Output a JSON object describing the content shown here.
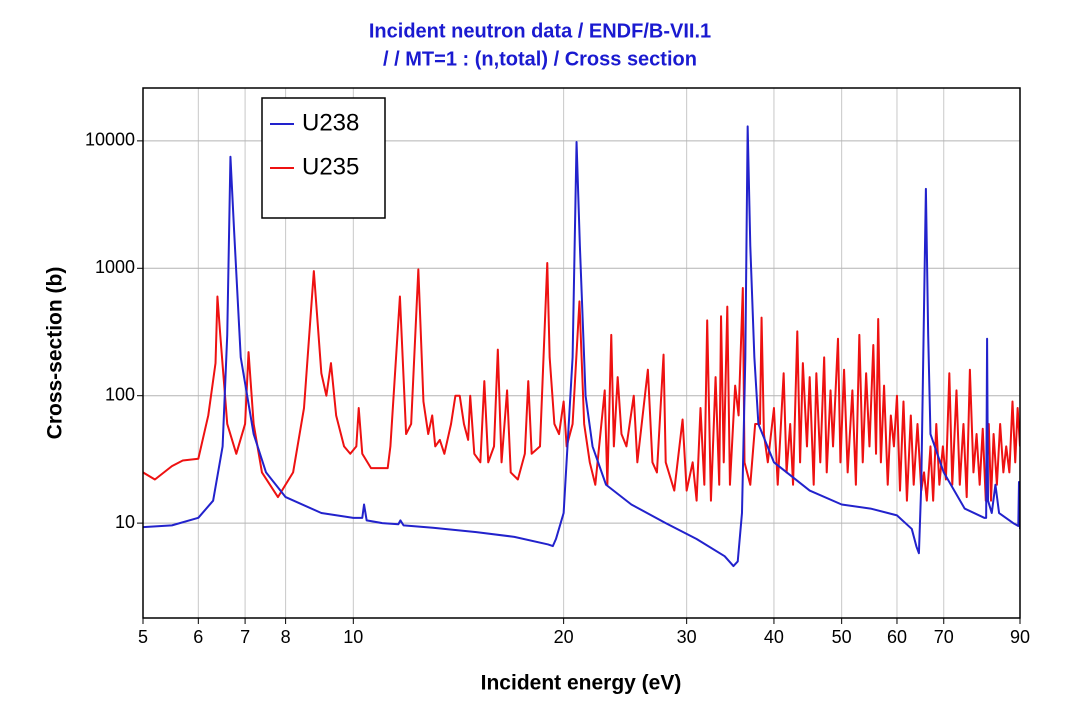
{
  "chart_data": {
    "type": "line",
    "title": "Incident neutron data / ENDF/B-VII.1",
    "subtitle": "/ / MT=1 : (n,total) / Cross section",
    "x_label": "Incident energy (eV)",
    "y_label": "Cross-section (b)",
    "xscale": "log",
    "yscale": "log",
    "grid": true,
    "legend": "upper left",
    "xlim": [
      5,
      90
    ],
    "ylim": [
      1.8,
      26000
    ],
    "xticks": [
      5,
      6,
      7,
      8,
      10,
      20,
      30,
      40,
      50,
      60,
      70,
      90
    ],
    "yticks": [
      10,
      100,
      1000,
      10000
    ],
    "series": [
      {
        "name": "U238",
        "color": "#2222cc",
        "x": [
          5,
          5.5,
          6,
          6.3,
          6.5,
          6.6,
          6.67,
          6.75,
          6.9,
          7.2,
          7.5,
          8,
          9,
          10,
          10.3,
          10.36,
          10.45,
          11,
          11.6,
          11.68,
          11.8,
          13,
          15,
          17,
          19,
          19.3,
          19.5,
          20,
          20.6,
          20.87,
          21.1,
          21.5,
          22,
          23,
          25,
          28,
          31,
          34,
          35,
          35.5,
          36,
          36.4,
          36.68,
          37,
          37.5,
          38,
          40,
          45,
          50,
          55,
          60,
          63,
          64,
          64.5,
          65,
          66,
          66.5,
          67,
          70,
          75,
          80,
          80.5,
          80.75,
          81,
          82,
          83,
          84,
          88,
          89.5,
          89.7,
          90
        ],
        "values": [
          9.3,
          9.6,
          11,
          15,
          40,
          300,
          7500,
          2000,
          200,
          50,
          25,
          16,
          12,
          11,
          11,
          14,
          10.5,
          10,
          9.8,
          10.5,
          9.6,
          9.2,
          8.5,
          7.8,
          6.8,
          6.6,
          7.5,
          12,
          200,
          9800,
          1500,
          100,
          40,
          20,
          14,
          10,
          7.5,
          5.5,
          4.6,
          5,
          12,
          200,
          13000,
          1500,
          200,
          60,
          30,
          18,
          14,
          13,
          11.5,
          9,
          6.5,
          5.8,
          20,
          4200,
          300,
          50,
          25,
          13,
          11,
          11,
          280,
          15,
          12,
          20,
          12,
          10,
          9.5,
          21,
          9
        ]
      },
      {
        "name": "U235",
        "color": "#ee1111",
        "x": [
          5,
          5.2,
          5.5,
          5.7,
          6,
          6.2,
          6.35,
          6.39,
          6.45,
          6.6,
          6.8,
          7.0,
          7.08,
          7.2,
          7.4,
          7.8,
          8.2,
          8.5,
          8.78,
          9.0,
          9.15,
          9.29,
          9.45,
          9.7,
          9.9,
          10.1,
          10.18,
          10.3,
          10.6,
          11.2,
          11.3,
          11.66,
          11.9,
          12.1,
          12.39,
          12.6,
          12.8,
          12.97,
          13.1,
          13.3,
          13.5,
          13.8,
          14.0,
          14.2,
          14.4,
          14.6,
          14.7,
          14.9,
          15.2,
          15.4,
          15.6,
          15.9,
          16.1,
          16.3,
          16.6,
          16.8,
          17.2,
          17.6,
          17.8,
          18.0,
          18.5,
          18.95,
          19.1,
          19.4,
          19.7,
          20.0,
          20.2,
          20.6,
          21.07,
          21.4,
          21.8,
          22.2,
          22.9,
          23.1,
          23.4,
          23.6,
          23.9,
          24.2,
          24.6,
          25.2,
          25.5,
          26.4,
          26.8,
          27.2,
          27.8,
          28.0,
          28.8,
          29.6,
          30,
          30.6,
          31.0,
          31.4,
          31.8,
          32.1,
          32.5,
          33.0,
          33.4,
          33.6,
          33.9,
          34.3,
          34.6,
          35.2,
          35.6,
          36.1,
          36.3,
          37.0,
          37.6,
          38.2,
          38.4,
          38.7,
          39.2,
          40,
          40.5,
          41.3,
          41.7,
          42.2,
          42.6,
          43.2,
          43.6,
          44,
          44.6,
          45,
          45.6,
          46,
          46.6,
          47.2,
          47.6,
          48.2,
          48.6,
          49.4,
          49.8,
          50.4,
          51,
          51.8,
          52.4,
          53,
          53.6,
          54.2,
          54.8,
          55.5,
          56,
          56.4,
          56.9,
          57.5,
          58.2,
          58.8,
          59.4,
          60,
          60.6,
          61.3,
          62,
          62.8,
          63.4,
          64.2,
          65,
          65.6,
          66.2,
          67,
          67.6,
          68.3,
          69,
          69.8,
          70.5,
          71.3,
          72,
          73,
          73.8,
          74.7,
          75.5,
          76.3,
          77.2,
          78,
          78.8,
          79.6,
          80.4,
          81.2,
          81.8,
          82.5,
          83.4,
          84.3,
          85.2,
          86,
          86.9,
          87.8,
          88.6,
          89.3,
          90
        ],
        "values": [
          25,
          22,
          28,
          31,
          32,
          70,
          180,
          600,
          300,
          60,
          35,
          60,
          220,
          60,
          25,
          16,
          25,
          80,
          950,
          150,
          100,
          180,
          70,
          40,
          35,
          40,
          80,
          35,
          27,
          27,
          40,
          600,
          50,
          60,
          980,
          90,
          50,
          70,
          40,
          45,
          35,
          60,
          100,
          100,
          60,
          45,
          100,
          35,
          30,
          130,
          30,
          40,
          230,
          30,
          110,
          25,
          22,
          35,
          130,
          35,
          40,
          1100,
          200,
          60,
          50,
          90,
          40,
          60,
          550,
          60,
          30,
          20,
          110,
          20,
          300,
          40,
          140,
          50,
          40,
          100,
          30,
          160,
          30,
          25,
          210,
          30,
          18,
          65,
          18,
          30,
          15,
          80,
          20,
          390,
          15,
          140,
          20,
          420,
          30,
          500,
          20,
          120,
          70,
          700,
          30,
          20,
          60,
          60,
          410,
          50,
          30,
          80,
          20,
          150,
          25,
          60,
          20,
          320,
          30,
          180,
          40,
          140,
          20,
          150,
          30,
          200,
          25,
          110,
          40,
          280,
          30,
          160,
          25,
          110,
          20,
          300,
          30,
          150,
          40,
          250,
          35,
          400,
          30,
          120,
          20,
          70,
          40,
          100,
          18,
          90,
          15,
          70,
          20,
          60,
          18,
          25,
          15,
          40,
          15,
          60,
          20,
          40,
          22,
          150,
          20,
          110,
          20,
          60,
          16,
          160,
          25,
          50,
          20,
          55,
          15,
          60,
          15,
          50,
          20,
          60,
          25,
          40,
          25,
          90,
          30,
          80,
          40
        ]
      }
    ]
  }
}
